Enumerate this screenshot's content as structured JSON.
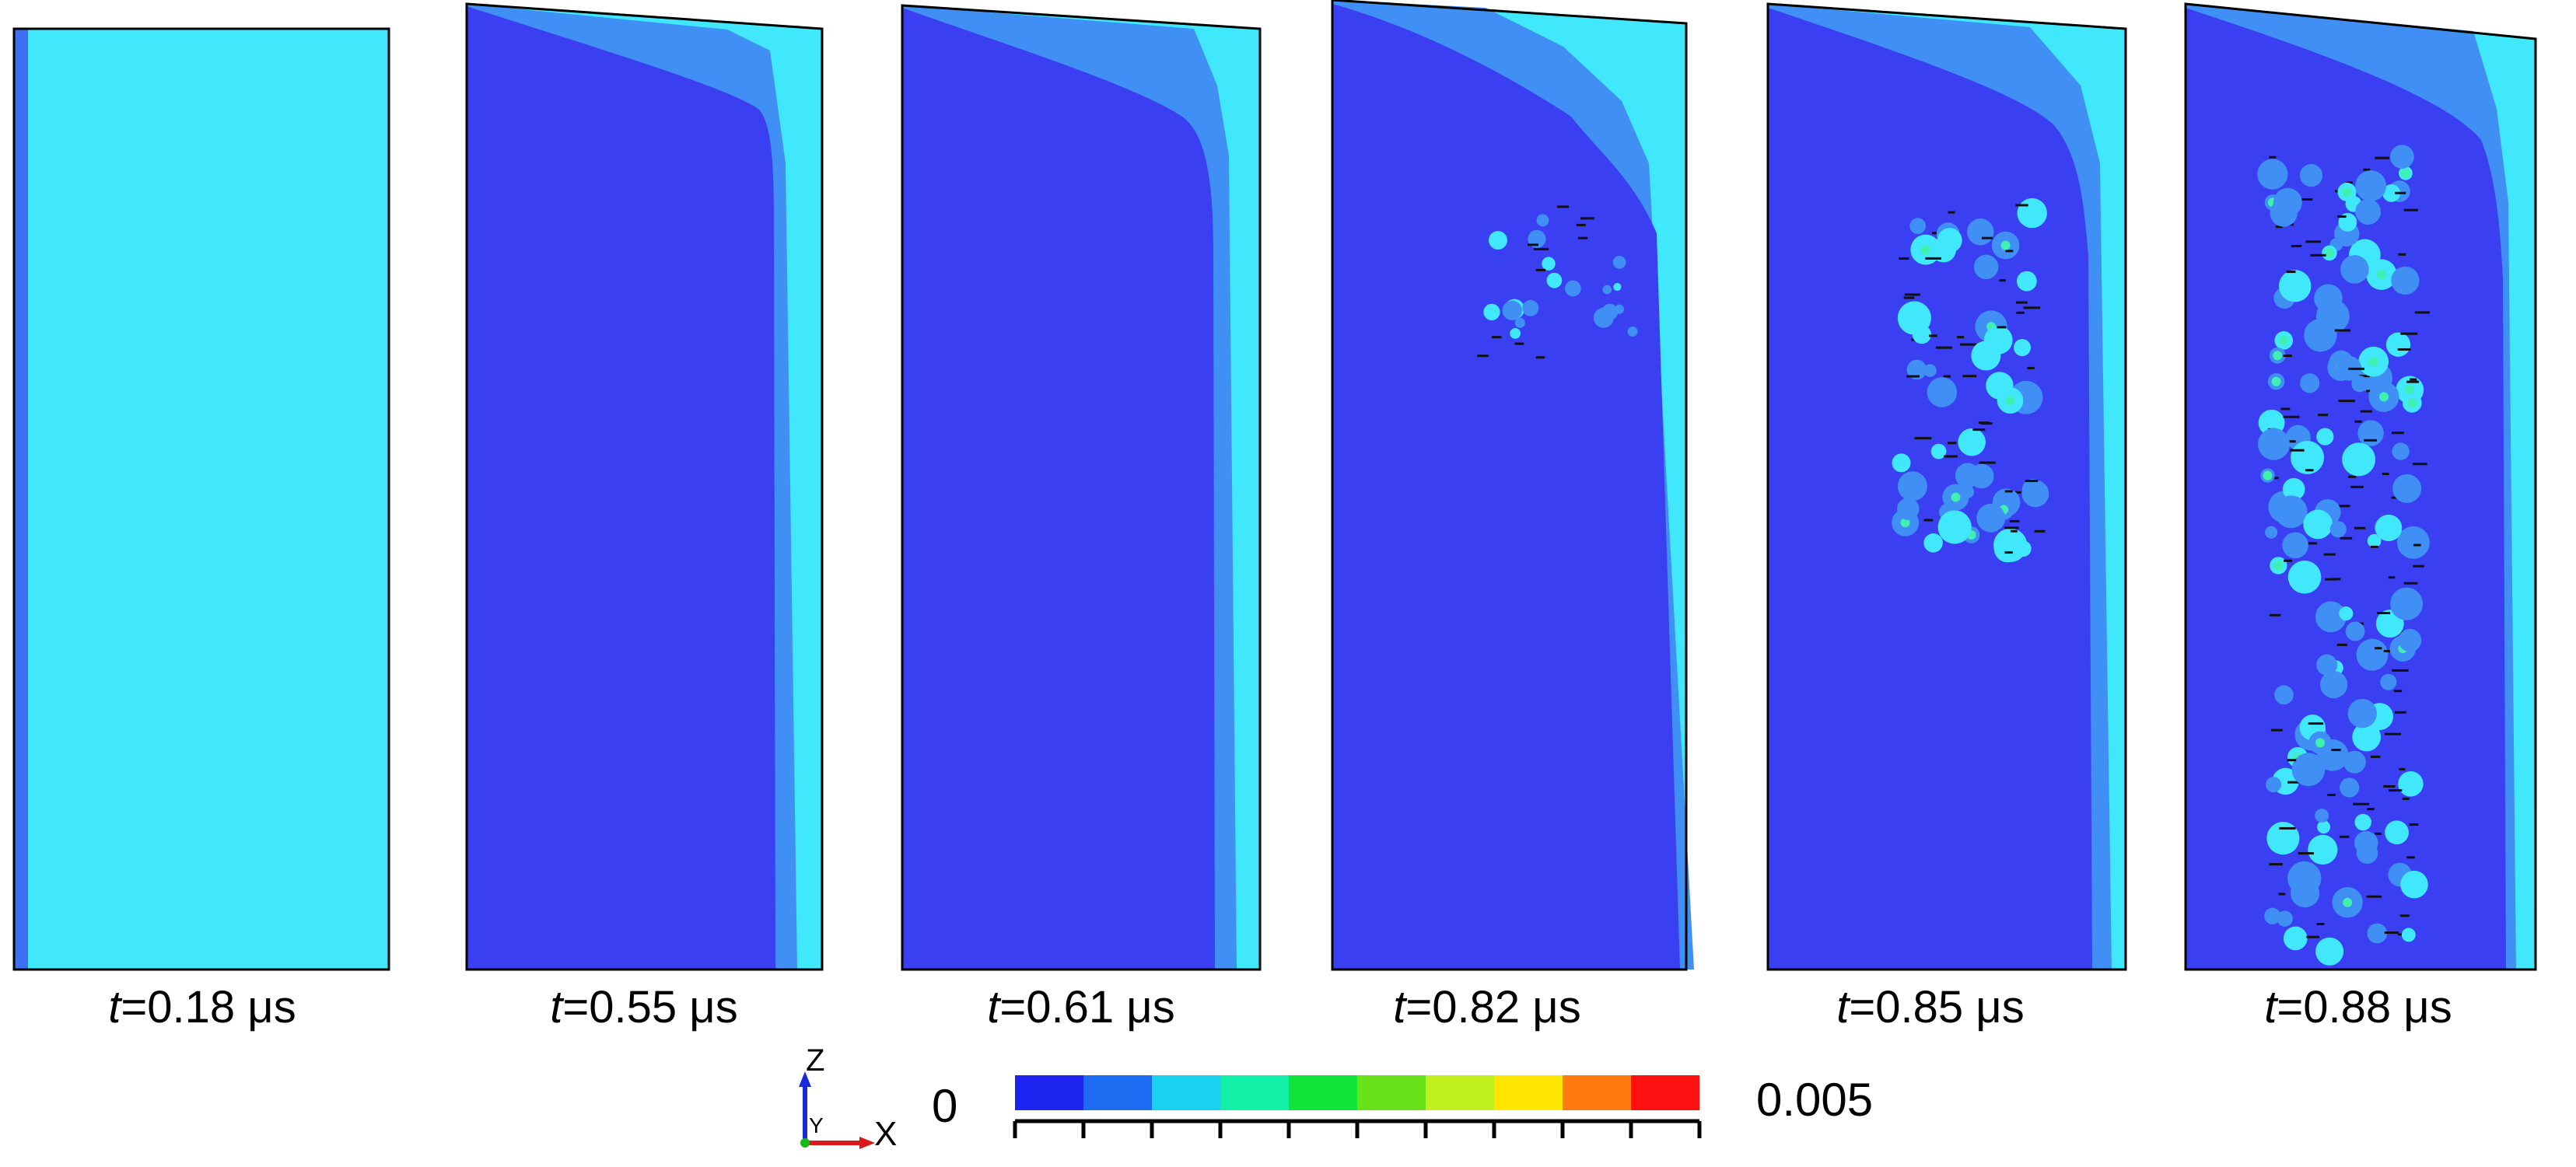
{
  "figure": {
    "panels": [
      {
        "time_var": "t",
        "time_value": "=0.18 μs"
      },
      {
        "time_var": "t",
        "time_value": "=0.55 μs"
      },
      {
        "time_var": "t",
        "time_value": "=0.61 μs"
      },
      {
        "time_var": "t",
        "time_value": "=0.82 μs"
      },
      {
        "time_var": "t",
        "time_value": "=0.85 μs"
      },
      {
        "time_var": "t",
        "time_value": "=0.88 μs"
      }
    ],
    "axis_triad": {
      "z_label": "Z",
      "y_label": "Y",
      "x_label": "X"
    },
    "colorbar": {
      "min_label": "0",
      "max_label": "0.005",
      "colors": [
        "#1e24f0",
        "#1b6cf0",
        "#19d2f2",
        "#12f0a8",
        "#10e33a",
        "#6ae21a",
        "#bff01e",
        "#ffe600",
        "#ff7a10",
        "#ff1010"
      ]
    },
    "palette": {
      "dark_blue": "#3a3ff2",
      "medium_blue": "#3f8ff5",
      "cyan": "#41e8fc",
      "teal_green": "#40f0b0",
      "outline": "#000000"
    }
  }
}
